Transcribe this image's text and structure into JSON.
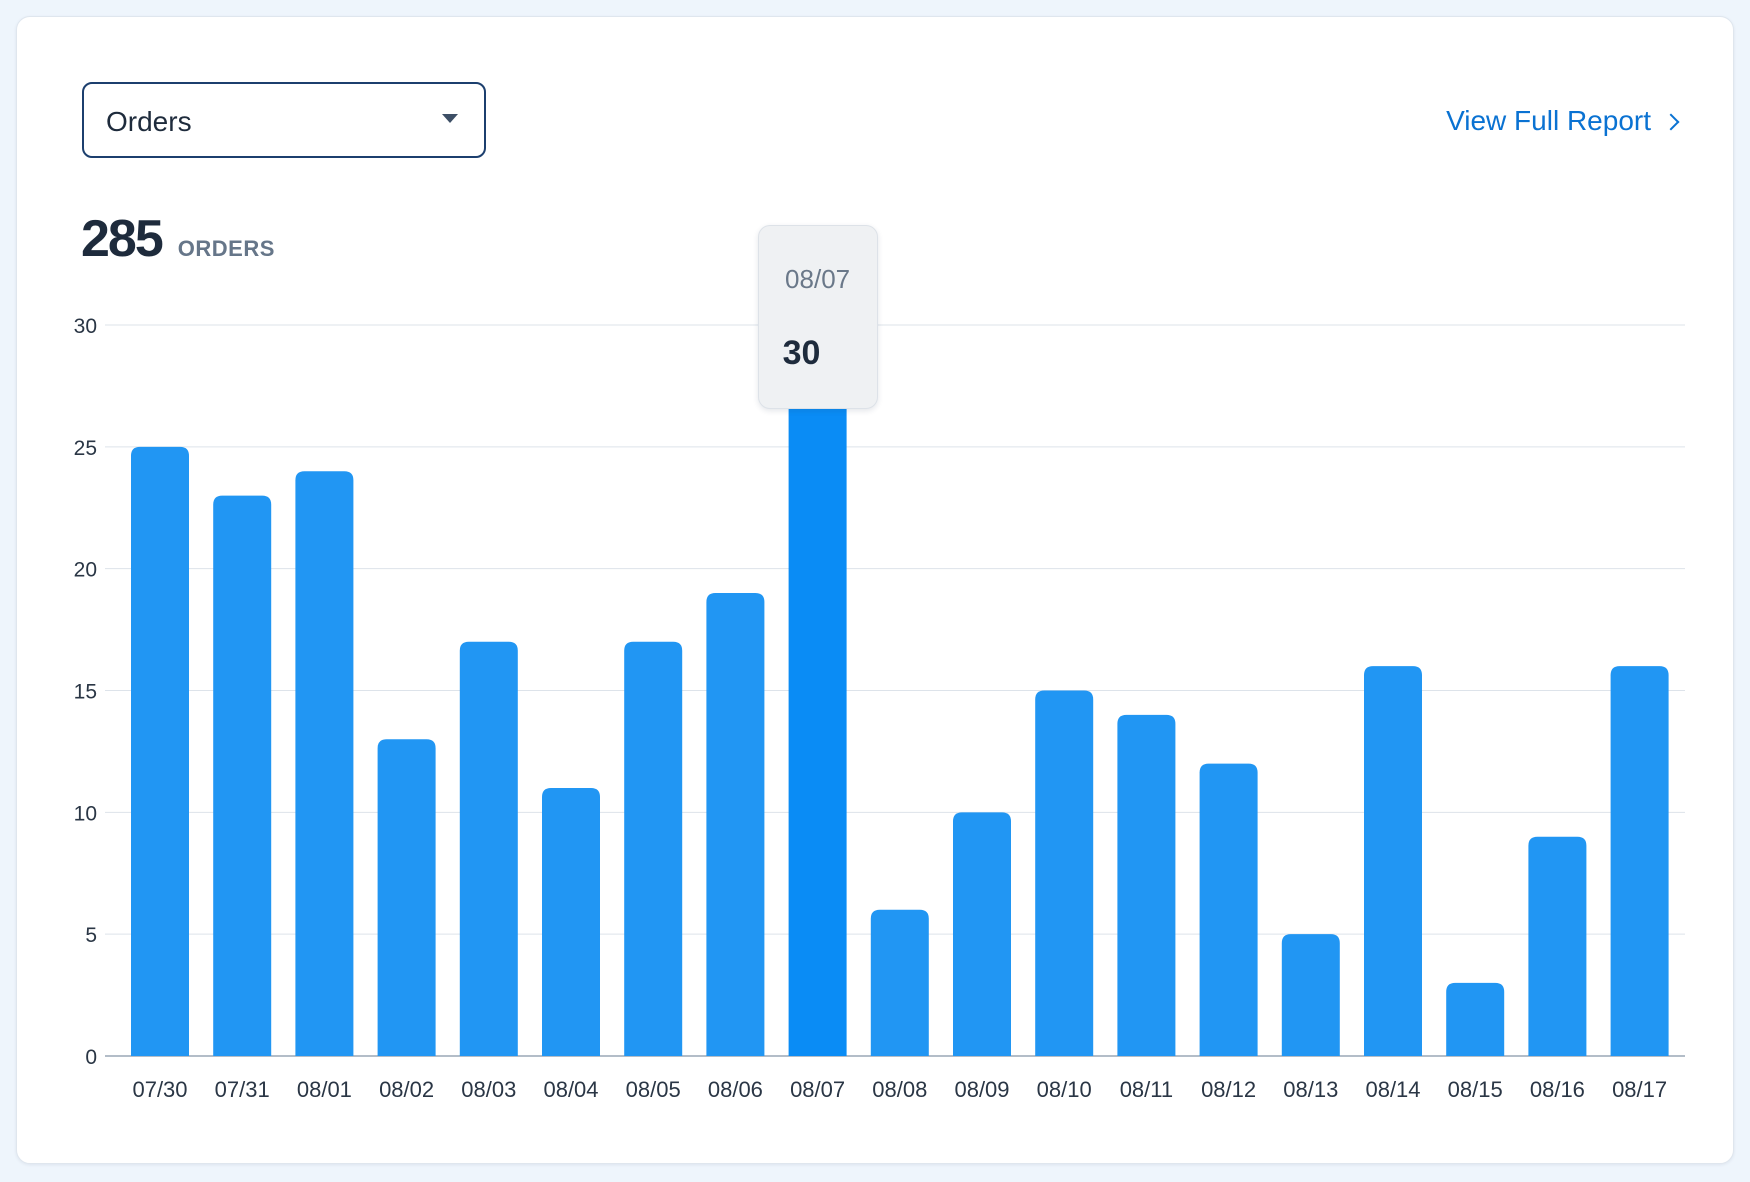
{
  "metric_select": {
    "value": "Orders"
  },
  "report_link": {
    "label": "View Full Report"
  },
  "summary": {
    "total": "285",
    "unit": "ORDERS"
  },
  "tooltip": {
    "date": "08/07",
    "value": "30"
  },
  "colors": {
    "bar": "#2196f3",
    "bar_active": "#0a8cf5",
    "gridline": "#dde3ea",
    "axis_text": "#2a3645",
    "link": "#0a72d2"
  },
  "chart_data": {
    "type": "bar",
    "categories": [
      "07/30",
      "07/31",
      "08/01",
      "08/02",
      "08/03",
      "08/04",
      "08/05",
      "08/06",
      "08/07",
      "08/08",
      "08/09",
      "08/10",
      "08/11",
      "08/12",
      "08/13",
      "08/14",
      "08/15",
      "08/16",
      "08/17"
    ],
    "values": [
      25,
      23,
      24,
      13,
      17,
      11,
      17,
      19,
      30,
      6,
      10,
      15,
      14,
      12,
      5,
      16,
      3,
      9,
      16
    ],
    "yticks": [
      "0",
      "5",
      "10",
      "15",
      "20",
      "25",
      "30"
    ],
    "ylim": [
      0,
      30
    ],
    "highlighted_index": 8,
    "grid": true,
    "title": "",
    "xlabel": "",
    "ylabel": ""
  }
}
